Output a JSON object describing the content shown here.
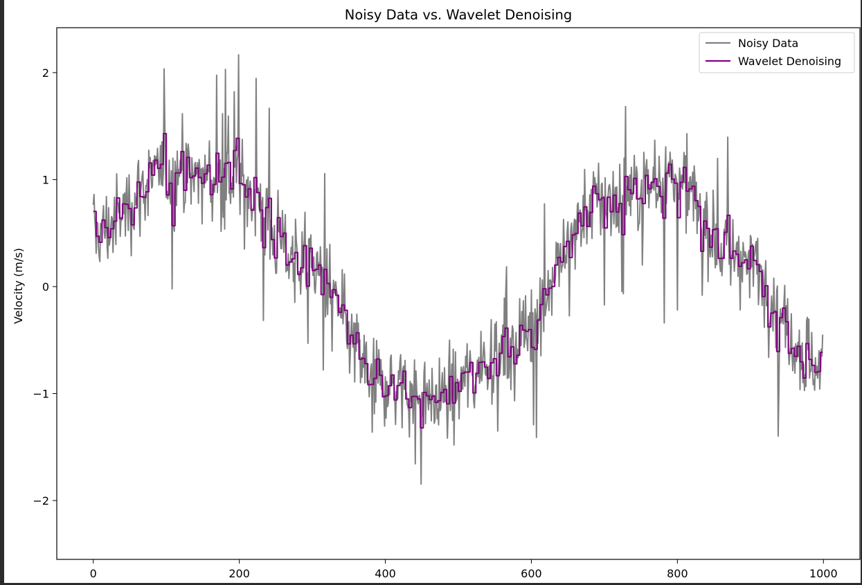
{
  "chart_data": {
    "type": "line",
    "title": "Noisy Data vs. Wavelet Denoising",
    "xlabel": "",
    "ylabel": "Velocity (m/s)",
    "xlim": [
      -50,
      1050
    ],
    "ylim": [
      -2.55,
      2.42
    ],
    "xticks": [
      0,
      200,
      400,
      600,
      800,
      1000
    ],
    "xtick_labels": [
      "0",
      "200",
      "400",
      "600",
      "800",
      "1000"
    ],
    "yticks": [
      -2,
      -1,
      0,
      1,
      2
    ],
    "ytick_labels": [
      "−2",
      "−1",
      "0",
      "1",
      "2"
    ],
    "grid": false,
    "legend_position": "top-right",
    "series": [
      {
        "name": "Noisy Data",
        "color": "#808080",
        "n_points": 1000,
        "x_range": [
          0,
          999
        ],
        "notes_description": "sin(2*pi*x/750)-like signal with amplitude ~1 plus gaussian noise (std ~0.5)",
        "anchors_x": [
          0,
          100,
          190,
          280,
          400,
          470,
          560,
          700,
          790,
          880,
          999
        ],
        "anchors_y": [
          0.5,
          1.05,
          1.0,
          0.3,
          -0.9,
          -1.05,
          -0.6,
          0.8,
          1.0,
          0.3,
          -0.75
        ]
      },
      {
        "name": "Wavelet Denoising",
        "color": "#800080",
        "step_width": 4,
        "x_range": [
          0,
          999
        ]
      }
    ]
  }
}
